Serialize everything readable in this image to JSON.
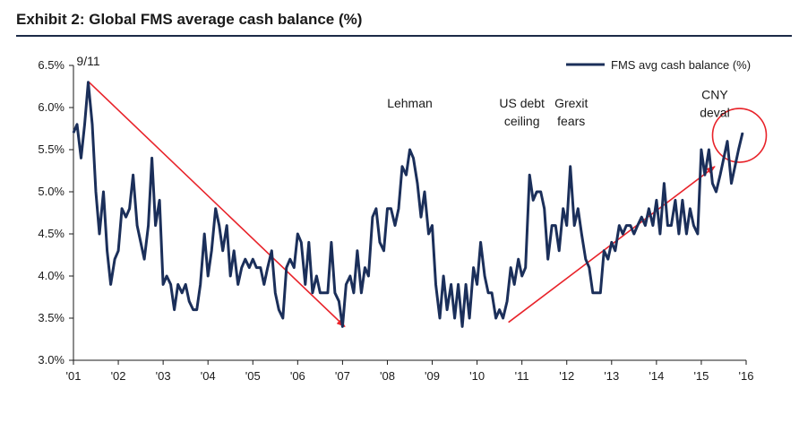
{
  "exhibit_title": "Exhibit 2: Global FMS average cash balance (%)",
  "chart_data": {
    "type": "line",
    "title": "Exhibit 2: Global FMS average cash balance (%)",
    "xlabel": "",
    "ylabel": "",
    "ylim": [
      3.0,
      6.5
    ],
    "xlim": [
      2001.0,
      2016.0
    ],
    "y_ticks": [
      "6.5%",
      "6.0%",
      "5.5%",
      "5.0%",
      "4.5%",
      "4.0%",
      "3.5%",
      "3.0%"
    ],
    "y_tick_values": [
      6.5,
      6.0,
      5.5,
      5.0,
      4.5,
      4.0,
      3.5,
      3.0
    ],
    "x_ticks": [
      "'01",
      "'02",
      "'03",
      "'04",
      "'05",
      "'06",
      "'07",
      "'08",
      "'09",
      "'10",
      "'11",
      "'12",
      "'13",
      "'14",
      "'15",
      "'16"
    ],
    "x_tick_values": [
      2001,
      2002,
      2003,
      2004,
      2005,
      2006,
      2007,
      2008,
      2009,
      2010,
      2011,
      2012,
      2013,
      2014,
      2015,
      2016
    ],
    "grid": false,
    "legend_position": "top-right",
    "series": [
      {
        "name": "FMS avg cash balance (%)",
        "color": "#1b2f5a",
        "points": [
          [
            2001.0,
            5.7
          ],
          [
            2001.08,
            5.8
          ],
          [
            2001.17,
            5.4
          ],
          [
            2001.25,
            5.8
          ],
          [
            2001.33,
            6.3
          ],
          [
            2001.42,
            5.8
          ],
          [
            2001.5,
            5.0
          ],
          [
            2001.58,
            4.5
          ],
          [
            2001.67,
            5.0
          ],
          [
            2001.75,
            4.3
          ],
          [
            2001.83,
            3.9
          ],
          [
            2001.92,
            4.2
          ],
          [
            2002.0,
            4.3
          ],
          [
            2002.08,
            4.8
          ],
          [
            2002.17,
            4.7
          ],
          [
            2002.25,
            4.8
          ],
          [
            2002.33,
            5.2
          ],
          [
            2002.42,
            4.6
          ],
          [
            2002.5,
            4.4
          ],
          [
            2002.58,
            4.2
          ],
          [
            2002.67,
            4.6
          ],
          [
            2002.75,
            5.4
          ],
          [
            2002.83,
            4.6
          ],
          [
            2002.92,
            4.9
          ],
          [
            2003.0,
            3.9
          ],
          [
            2003.08,
            4.0
          ],
          [
            2003.17,
            3.9
          ],
          [
            2003.25,
            3.6
          ],
          [
            2003.33,
            3.9
          ],
          [
            2003.42,
            3.8
          ],
          [
            2003.5,
            3.9
          ],
          [
            2003.58,
            3.7
          ],
          [
            2003.67,
            3.6
          ],
          [
            2003.75,
            3.6
          ],
          [
            2003.83,
            3.9
          ],
          [
            2003.92,
            4.5
          ],
          [
            2004.0,
            4.0
          ],
          [
            2004.08,
            4.3
          ],
          [
            2004.17,
            4.8
          ],
          [
            2004.25,
            4.6
          ],
          [
            2004.33,
            4.3
          ],
          [
            2004.42,
            4.6
          ],
          [
            2004.5,
            4.0
          ],
          [
            2004.58,
            4.3
          ],
          [
            2004.67,
            3.9
          ],
          [
            2004.75,
            4.1
          ],
          [
            2004.83,
            4.2
          ],
          [
            2004.92,
            4.1
          ],
          [
            2005.0,
            4.2
          ],
          [
            2005.08,
            4.1
          ],
          [
            2005.17,
            4.1
          ],
          [
            2005.25,
            3.9
          ],
          [
            2005.33,
            4.1
          ],
          [
            2005.42,
            4.3
          ],
          [
            2005.5,
            3.8
          ],
          [
            2005.58,
            3.6
          ],
          [
            2005.67,
            3.5
          ],
          [
            2005.75,
            4.1
          ],
          [
            2005.83,
            4.2
          ],
          [
            2005.92,
            4.1
          ],
          [
            2006.0,
            4.5
          ],
          [
            2006.08,
            4.4
          ],
          [
            2006.17,
            3.9
          ],
          [
            2006.25,
            4.4
          ],
          [
            2006.33,
            3.8
          ],
          [
            2006.42,
            4.0
          ],
          [
            2006.5,
            3.8
          ],
          [
            2006.58,
            3.8
          ],
          [
            2006.67,
            3.8
          ],
          [
            2006.75,
            4.4
          ],
          [
            2006.83,
            3.8
          ],
          [
            2006.92,
            3.7
          ],
          [
            2007.0,
            3.4
          ],
          [
            2007.08,
            3.9
          ],
          [
            2007.17,
            4.0
          ],
          [
            2007.25,
            3.8
          ],
          [
            2007.33,
            4.3
          ],
          [
            2007.42,
            3.8
          ],
          [
            2007.5,
            4.1
          ],
          [
            2007.58,
            4.0
          ],
          [
            2007.67,
            4.7
          ],
          [
            2007.75,
            4.8
          ],
          [
            2007.83,
            4.4
          ],
          [
            2007.92,
            4.3
          ],
          [
            2008.0,
            4.8
          ],
          [
            2008.08,
            4.8
          ],
          [
            2008.17,
            4.6
          ],
          [
            2008.25,
            4.8
          ],
          [
            2008.33,
            5.3
          ],
          [
            2008.42,
            5.2
          ],
          [
            2008.5,
            5.5
          ],
          [
            2008.58,
            5.4
          ],
          [
            2008.67,
            5.1
          ],
          [
            2008.75,
            4.7
          ],
          [
            2008.83,
            5.0
          ],
          [
            2008.92,
            4.5
          ],
          [
            2009.0,
            4.6
          ],
          [
            2009.08,
            3.9
          ],
          [
            2009.17,
            3.5
          ],
          [
            2009.25,
            4.0
          ],
          [
            2009.33,
            3.6
          ],
          [
            2009.42,
            3.9
          ],
          [
            2009.5,
            3.5
          ],
          [
            2009.58,
            3.9
          ],
          [
            2009.67,
            3.4
          ],
          [
            2009.75,
            3.9
          ],
          [
            2009.83,
            3.5
          ],
          [
            2009.92,
            4.1
          ],
          [
            2010.0,
            3.9
          ],
          [
            2010.08,
            4.4
          ],
          [
            2010.17,
            4.0
          ],
          [
            2010.25,
            3.8
          ],
          [
            2010.33,
            3.8
          ],
          [
            2010.42,
            3.5
          ],
          [
            2010.5,
            3.6
          ],
          [
            2010.58,
            3.5
          ],
          [
            2010.67,
            3.7
          ],
          [
            2010.75,
            4.1
          ],
          [
            2010.83,
            3.9
          ],
          [
            2010.92,
            4.2
          ],
          [
            2011.0,
            4.0
          ],
          [
            2011.08,
            4.1
          ],
          [
            2011.17,
            5.2
          ],
          [
            2011.25,
            4.9
          ],
          [
            2011.33,
            5.0
          ],
          [
            2011.42,
            5.0
          ],
          [
            2011.5,
            4.8
          ],
          [
            2011.58,
            4.2
          ],
          [
            2011.67,
            4.6
          ],
          [
            2011.75,
            4.6
          ],
          [
            2011.83,
            4.3
          ],
          [
            2011.92,
            4.8
          ],
          [
            2012.0,
            4.6
          ],
          [
            2012.08,
            5.3
          ],
          [
            2012.17,
            4.6
          ],
          [
            2012.25,
            4.8
          ],
          [
            2012.33,
            4.5
          ],
          [
            2012.42,
            4.2
          ],
          [
            2012.5,
            4.1
          ],
          [
            2012.58,
            3.8
          ],
          [
            2012.67,
            3.8
          ],
          [
            2012.75,
            3.8
          ],
          [
            2012.83,
            4.3
          ],
          [
            2012.92,
            4.2
          ],
          [
            2013.0,
            4.4
          ],
          [
            2013.08,
            4.3
          ],
          [
            2013.17,
            4.6
          ],
          [
            2013.25,
            4.5
          ],
          [
            2013.33,
            4.6
          ],
          [
            2013.42,
            4.6
          ],
          [
            2013.5,
            4.5
          ],
          [
            2013.58,
            4.6
          ],
          [
            2013.67,
            4.7
          ],
          [
            2013.75,
            4.6
          ],
          [
            2013.83,
            4.8
          ],
          [
            2013.92,
            4.6
          ],
          [
            2014.0,
            4.9
          ],
          [
            2014.08,
            4.5
          ],
          [
            2014.17,
            5.1
          ],
          [
            2014.25,
            4.6
          ],
          [
            2014.33,
            4.6
          ],
          [
            2014.42,
            4.9
          ],
          [
            2014.5,
            4.5
          ],
          [
            2014.58,
            4.9
          ],
          [
            2014.67,
            4.5
          ],
          [
            2014.75,
            4.8
          ],
          [
            2014.83,
            4.6
          ],
          [
            2014.92,
            4.5
          ],
          [
            2015.0,
            5.5
          ],
          [
            2015.08,
            5.2
          ],
          [
            2015.17,
            5.5
          ],
          [
            2015.25,
            5.1
          ],
          [
            2015.33,
            5.0
          ],
          [
            2015.42,
            5.2
          ],
          [
            2015.5,
            5.4
          ],
          [
            2015.58,
            5.6
          ],
          [
            2015.67,
            5.1
          ],
          [
            2015.75,
            5.3
          ],
          [
            2015.83,
            5.5
          ],
          [
            2015.92,
            5.7
          ]
        ]
      }
    ],
    "annotations": [
      {
        "id": "911",
        "lines": [
          "9/11"
        ],
        "x": 2001.33,
        "y": 6.5
      },
      {
        "id": "lehman",
        "lines": [
          "Lehman"
        ],
        "x": 2008.5,
        "y": 6.0
      },
      {
        "id": "usdebt",
        "lines": [
          "US debt",
          "ceiling"
        ],
        "x": 2011.0,
        "y": 6.0
      },
      {
        "id": "grexit",
        "lines": [
          "Grexit",
          "fears"
        ],
        "x": 2012.1,
        "y": 6.0
      },
      {
        "id": "cny",
        "lines": [
          "CNY",
          "deval"
        ],
        "x": 2015.3,
        "y": 6.1
      }
    ],
    "trend_arrows": [
      {
        "id": "arrow-down",
        "from": [
          2001.35,
          6.3
        ],
        "to": [
          2007.05,
          3.4
        ],
        "color": "#e8232a"
      },
      {
        "id": "arrow-up",
        "from": [
          2010.7,
          3.45
        ],
        "to": [
          2015.3,
          5.3
        ],
        "color": "#e8232a"
      }
    ],
    "highlight_circle": {
      "center": [
        2015.85,
        5.67
      ],
      "color": "#e8232a"
    }
  }
}
